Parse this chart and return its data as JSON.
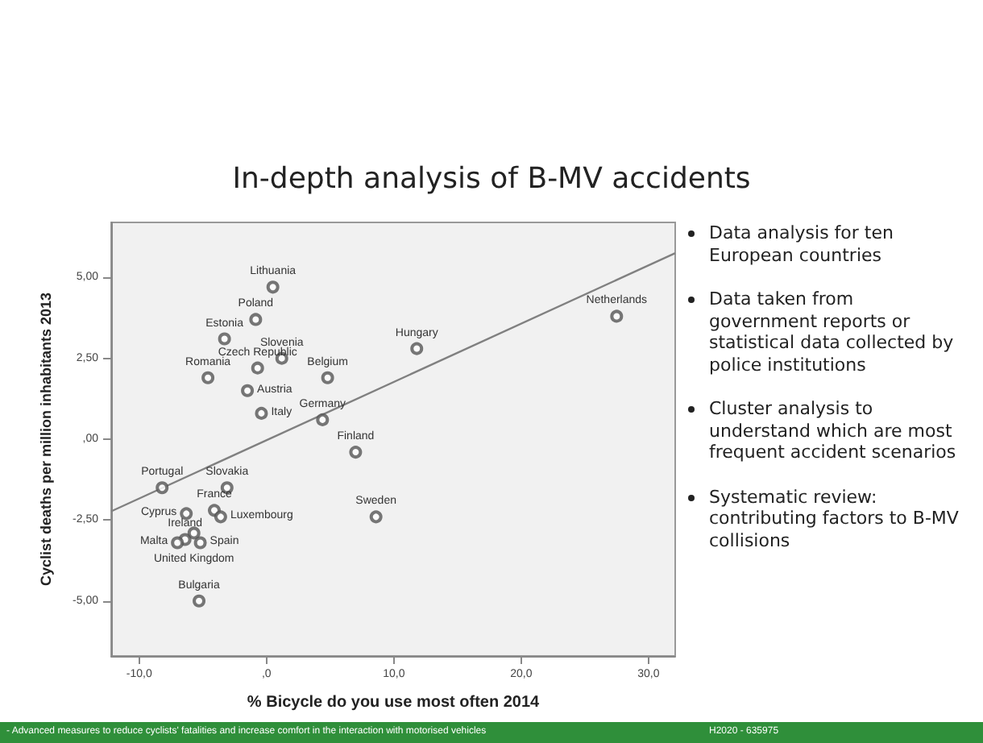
{
  "chart_data": {
    "type": "scatter",
    "title": "In-depth analysis of B-MV accidents",
    "xlabel": "% Bicycle do you use most often 2014",
    "ylabel": "Cyclist deaths per million inhabitants 2013",
    "series": [
      {
        "type": "scatter",
        "color": "#555555",
        "x": [
          0.5,
          -0.85,
          -3.3,
          1.2,
          11.8,
          -4.6,
          -0.7,
          4.8,
          -1.5,
          -0.4,
          4.4,
          7.0,
          -8.2,
          -3.1,
          -4.1,
          -3.6,
          -6.3,
          -5.7,
          -6.4,
          -7.0,
          -5.2,
          8.6,
          -5.3,
          27.5
        ],
        "values": [
          4.7,
          3.7,
          3.1,
          2.5,
          2.8,
          1.9,
          2.2,
          1.9,
          1.5,
          0.8,
          0.6,
          -0.4,
          -1.5,
          -1.5,
          -2.2,
          -2.4,
          -2.3,
          -2.9,
          -3.1,
          -3.2,
          -3.2,
          -2.4,
          -5.0,
          3.8
        ]
      },
      {
        "type": "line",
        "color": "#808080",
        "marker": "none",
        "x": [
          -12.2,
          32.1
        ],
        "values": [
          -2.23,
          5.75
        ]
      }
    ],
    "marker": "circle",
    "grid": false,
    "xlim": [
      -12.2,
      32.1
    ],
    "ylim": [
      -6.7,
      6.7
    ],
    "xticks": [
      {
        "value": -10,
        "label": "-10,0"
      },
      {
        "value": 0,
        "label": ",0"
      },
      {
        "value": 10,
        "label": "10,0"
      },
      {
        "value": 20,
        "label": "20,0"
      },
      {
        "value": 30,
        "label": "30,0"
      }
    ],
    "yticks": [
      {
        "value": -5,
        "label": "-5,00"
      },
      {
        "value": -2.5,
        "label": "-2,50"
      },
      {
        "value": 0,
        "label": ",00"
      },
      {
        "value": 2.5,
        "label": "2,50"
      },
      {
        "value": 5,
        "label": "5,00"
      }
    ],
    "annotations": [
      {
        "text": "Lithuania",
        "x": 0.5,
        "y": 4.7
      },
      {
        "text": "Poland",
        "x": -0.85,
        "y": 3.7
      },
      {
        "text": "Estonia",
        "x": -3.3,
        "y": 3.1
      },
      {
        "text": "Slovenia",
        "x": 1.2,
        "y": 2.5
      },
      {
        "text": "Hungary",
        "x": 11.8,
        "y": 2.8
      },
      {
        "text": "Romania",
        "x": -4.6,
        "y": 1.9
      },
      {
        "text": "Czech Republic",
        "x": -0.7,
        "y": 2.2
      },
      {
        "text": "Belgium",
        "x": 4.8,
        "y": 1.9
      },
      {
        "text": "Austria",
        "x": -1.5,
        "y": 1.5
      },
      {
        "text": "Italy",
        "x": -0.4,
        "y": 0.8
      },
      {
        "text": "Germany",
        "x": 4.4,
        "y": 0.6
      },
      {
        "text": "Finland",
        "x": 7.0,
        "y": -0.4
      },
      {
        "text": "Portugal",
        "x": -8.2,
        "y": -1.5
      },
      {
        "text": "Slovakia",
        "x": -3.1,
        "y": -1.5
      },
      {
        "text": "France",
        "x": -4.1,
        "y": -2.2
      },
      {
        "text": "Luxembourg",
        "x": -3.6,
        "y": -2.4
      },
      {
        "text": "Cyprus",
        "x": -6.3,
        "y": -2.3
      },
      {
        "text": "United Kingdom",
        "x": -5.7,
        "y": -2.9
      },
      {
        "text": "Ireland",
        "x": -6.4,
        "y": -3.1
      },
      {
        "text": "Malta",
        "x": -7.0,
        "y": -3.2
      },
      {
        "text": "Spain",
        "x": -5.2,
        "y": -3.2
      },
      {
        "text": "Sweden",
        "x": 8.6,
        "y": -2.4
      },
      {
        "text": "Bulgaria",
        "x": -5.3,
        "y": -5.0
      },
      {
        "text": "Netherlands",
        "x": 27.5,
        "y": 3.8
      },
      "Data analysis for ten European countries",
      "Data taken from government reports or statistical data collected by police institutions",
      "Cluster analysis to understand which are most frequent accident scenarios",
      "Systematic review: contributing factors to B-MV collisions",
      "- Advanced measures to reduce cyclists' fatalities and increase comfort in the interaction with motorised vehicles",
      "H2020 - 635975"
    ]
  }
}
